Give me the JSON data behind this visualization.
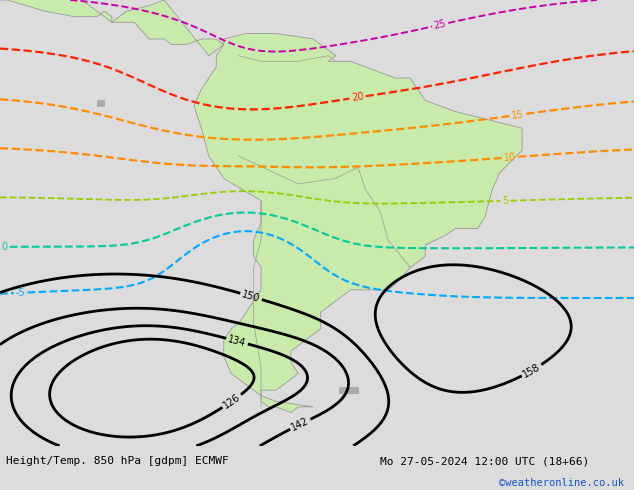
{
  "title_left": "Height/Temp. 850 hPa [gdpm] ECMWF",
  "title_right": "Mo 27-05-2024 12:00 UTC (18+66)",
  "credit": "©weatheronline.co.uk",
  "bg_color": "#dcdcdc",
  "land_color": "#c8eaaa",
  "ocean_color": "#dcdcdc",
  "border_color": "#999999",
  "mountain_color": "#aaaaaa",
  "fig_width": 6.34,
  "fig_height": 4.9,
  "dpi": 100,
  "lon_min": -105,
  "lon_max": -20,
  "lat_min": -62,
  "lat_max": 18
}
